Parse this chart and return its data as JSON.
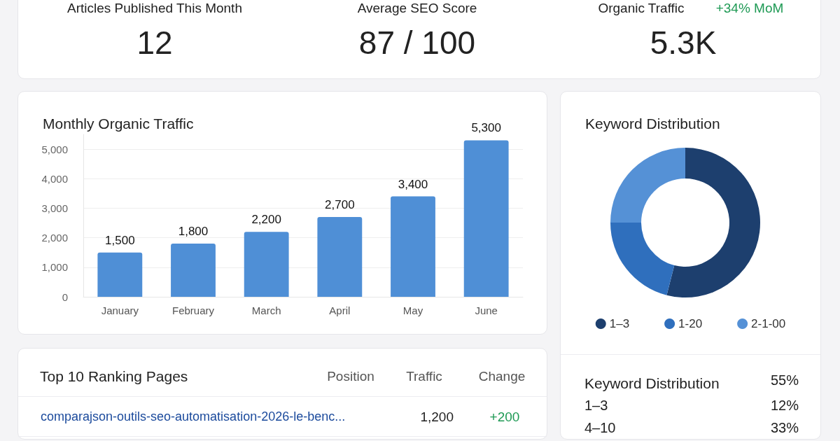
{
  "chart_data": [
    {
      "type": "other",
      "annotations": [
        "Articles Published This Month",
        "12",
        "Average SEO Score",
        "87 / 100",
        "Organic Traffic",
        "+34% MoM",
        "5.3K"
      ]
    },
    {
      "type": "bar",
      "title": "Monthly Organic Traffic",
      "categories": [
        "January",
        "February",
        "March",
        "April",
        "May",
        "June"
      ],
      "values": [
        1500,
        1800,
        2200,
        2700,
        3400,
        5300
      ],
      "value_labels": [
        "1,500",
        "1,800",
        "2,200",
        "2,700",
        "3,400",
        "5,300"
      ],
      "color": "#4f8fd6",
      "ylim": [
        0,
        5500
      ],
      "yticks": [
        0,
        {
          "value": 1000,
          "label": "1,000"
        },
        {
          "value": 2000,
          "label": "2,000"
        },
        {
          "value": 3000,
          "label": "3,000"
        },
        {
          "value": 4000,
          "label": "4,000"
        },
        {
          "value": 5000,
          "label": "5,000"
        }
      ],
      "grid": "y"
    },
    {
      "type": "donut",
      "title": "Keyword Distribution",
      "categories": [
        "1–3",
        "1-20",
        "2-1-00"
      ],
      "values": [
        54,
        21,
        25
      ],
      "colors": [
        "#1d3f6e",
        "#2f6fbd",
        "#5591d6"
      ],
      "legend": "bottom"
    },
    {
      "type": "other",
      "title": "Top 10 Ranking Pages",
      "annotations": [
        "Position",
        "Traffic",
        "Change",
        "comparajson-outils-seo-automatisation-2026-le-benc...",
        "1,200",
        "+200"
      ]
    },
    {
      "type": "other",
      "title": "Keyword Distribution",
      "annotations": [
        "55%",
        "1–3",
        "12%",
        "4–10",
        "33%"
      ]
    }
  ]
}
